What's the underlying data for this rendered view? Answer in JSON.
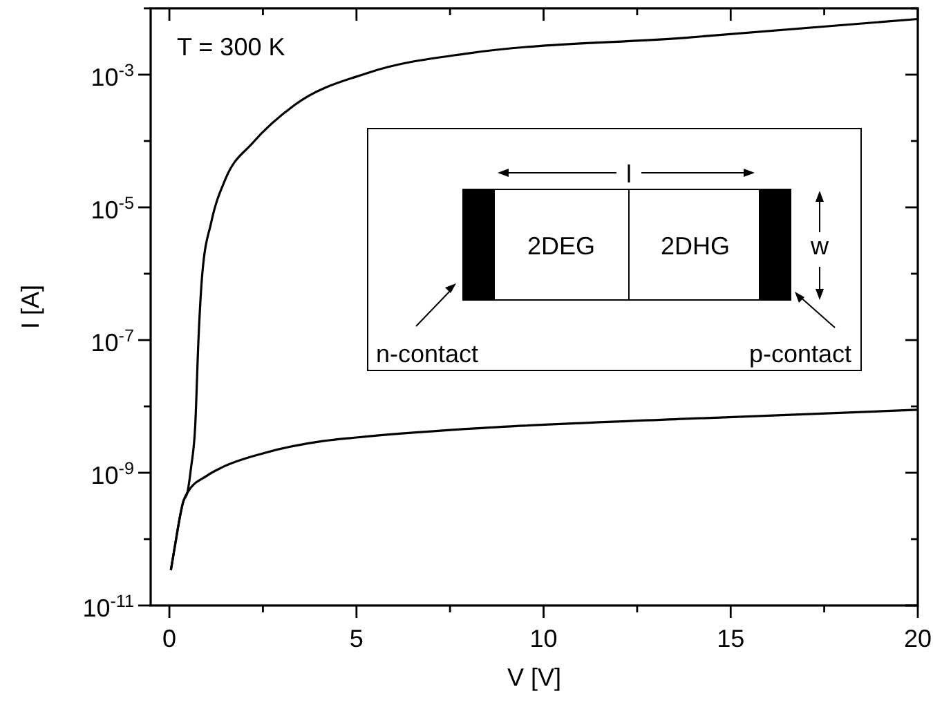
{
  "chart_data": {
    "type": "line",
    "xlabel": "V [V]",
    "ylabel": "I [A]",
    "log": "y",
    "xlim": [
      -0.5,
      20
    ],
    "ylim": [
      1e-11,
      0.01
    ],
    "xticks": [
      0,
      {
        "value": 2.5,
        "label": null
      },
      5,
      {
        "value": 7.5,
        "label": null
      },
      10,
      {
        "value": 12.5,
        "label": null
      },
      15,
      {
        "value": 17.5,
        "label": null
      },
      20
    ],
    "yticks": [
      {
        "value": 1e-11,
        "label": "10$^{-11}$"
      },
      {
        "value": 1e-10,
        "label": null
      },
      {
        "value": 1e-09,
        "label": "10$^{-9}$"
      },
      {
        "value": 1e-08,
        "label": null
      },
      {
        "value": 1e-07,
        "label": "10$^{-7}$"
      },
      {
        "value": 1e-06,
        "label": null
      },
      {
        "value": 1e-05,
        "label": "10$^{-5}$"
      },
      {
        "value": 0.0001,
        "label": null
      },
      {
        "value": 0.001,
        "label": "10$^{-3}$"
      },
      {
        "value": 0.01,
        "label": null
      }
    ],
    "grid": false,
    "marker": "none",
    "line_style": "solid",
    "annotations": [
      "T = 300 K",
      "2DEG",
      "2DHG",
      "l",
      "w",
      "n-contact",
      "p-contact"
    ],
    "series": [
      {
        "color": "#000000",
        "x": [
          0.04,
          0.14,
          0.38,
          0.48,
          0.58,
          0.69,
          0.78,
          0.88,
          1.12,
          1.49,
          2.23,
          3.35,
          5.32,
          8,
          13.8,
          20
        ],
        "values": [
          3.4e-11,
          7.4e-11,
          3.8e-10,
          5e-10,
          1.2e-09,
          5e-09,
          1.1e-07,
          1e-06,
          6e-06,
          2.6e-05,
          9.4e-05,
          0.00035,
          0.00107,
          0.0021,
          0.0036,
          0.0069
        ]
      },
      {
        "color": "#000000",
        "x": [
          0.04,
          0.14,
          0.38,
          0.48,
          1,
          1.4,
          2.5,
          4.1,
          5,
          8,
          13.8,
          20
        ],
        "values": [
          3.4e-11,
          7.4e-11,
          3.8e-10,
          5e-10,
          9e-10,
          1.2e-09,
          1.96e-09,
          3e-09,
          3.4e-09,
          4.6e-09,
          6.5e-09,
          8.9e-09
        ]
      }
    ]
  }
}
